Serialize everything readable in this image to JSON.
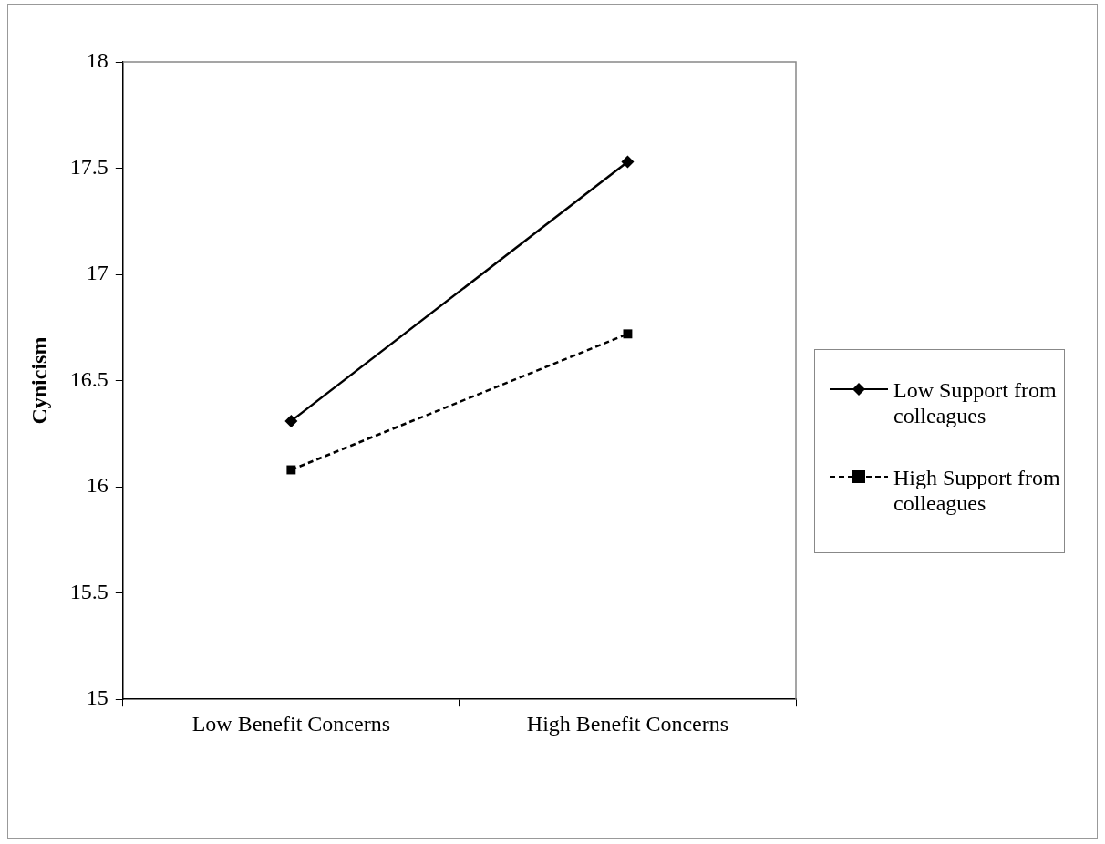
{
  "chart_data": {
    "type": "line",
    "ylabel": "Cynicism",
    "categories": [
      "Low Benefit Concerns",
      "High Benefit Concerns"
    ],
    "series": [
      {
        "name": "Low Support from colleagues",
        "color": "#000000",
        "values": [
          16.31,
          17.53
        ],
        "marker": "diamond",
        "line_style": "solid"
      },
      {
        "name": "High Support from colleagues",
        "color": "#000000",
        "values": [
          16.08,
          16.72
        ],
        "marker": "square",
        "line_style": "dashed"
      }
    ],
    "ylim": [
      15,
      18
    ],
    "yticks": [
      15,
      15.5,
      16,
      16.5,
      17,
      17.5,
      18
    ],
    "grid": false,
    "legend": "right"
  }
}
